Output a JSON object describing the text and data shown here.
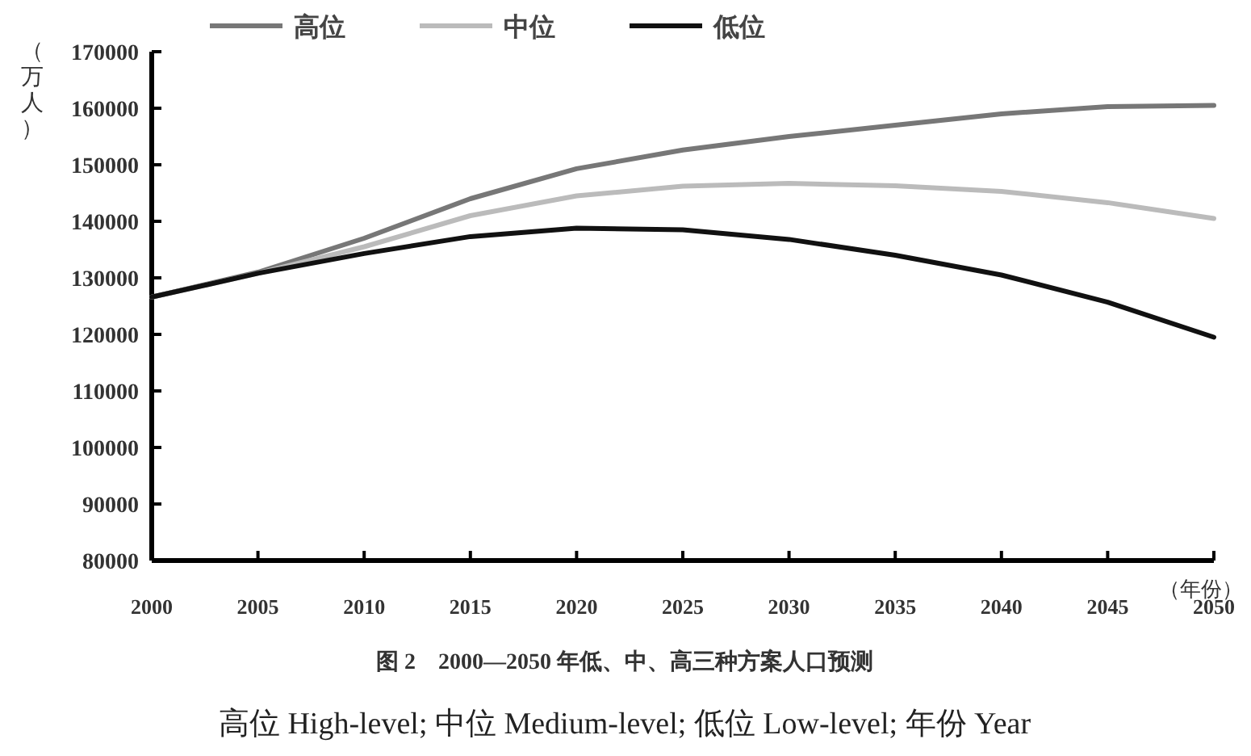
{
  "chart_data": {
    "type": "line",
    "title": "图 2　2000—2050 年低、中、高三种方案人口预测",
    "xlabel": "（年份）",
    "ylabel": "（万人）",
    "annotations": [
      "高位 High-level;  中位 Medium-level;  低位 Low-level;  年份 Year"
    ],
    "x": [
      2000,
      2005,
      2010,
      2015,
      2020,
      2025,
      2030,
      2035,
      2040,
      2045,
      2050
    ],
    "xlim": [
      2000,
      2050
    ],
    "xticks": [
      2000,
      2005,
      2010,
      2015,
      2020,
      2025,
      2030,
      2035,
      2040,
      2045,
      2050
    ],
    "ylim": [
      80000,
      170000
    ],
    "yticks": [
      80000,
      90000,
      100000,
      110000,
      120000,
      130000,
      140000,
      150000,
      160000,
      170000
    ],
    "grid": false,
    "legend": "top",
    "series": [
      {
        "name": "高位",
        "color": "#777777",
        "values": [
          126600,
          131000,
          137000,
          144000,
          149300,
          152600,
          155000,
          157000,
          159000,
          160300,
          160500
        ]
      },
      {
        "name": "中位",
        "color": "#bbbbbb",
        "values": [
          126600,
          130800,
          135500,
          141000,
          144500,
          146200,
          146700,
          146300,
          145300,
          143300,
          140500
        ]
      },
      {
        "name": "低位",
        "color": "#111111",
        "values": [
          126600,
          130800,
          134300,
          137300,
          138800,
          138500,
          136800,
          134000,
          130500,
          125700,
          119500
        ]
      }
    ]
  }
}
